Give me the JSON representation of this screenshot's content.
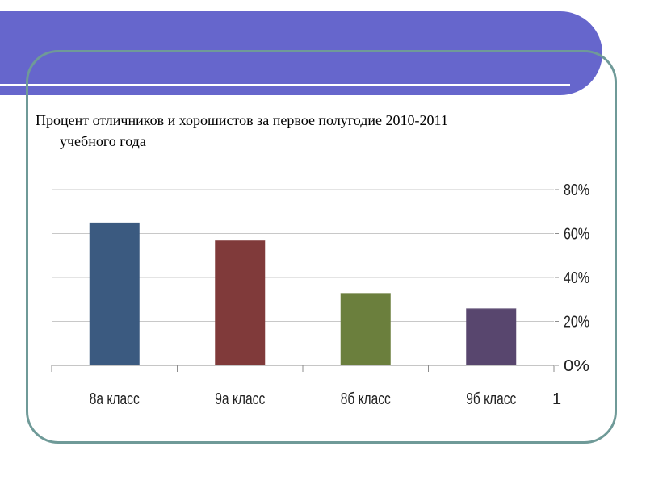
{
  "slide": {
    "header_color": "#6666cc",
    "frame_color": "#6f9a98",
    "title_line1": "Процент отличников и хорошистов за первое полугодие 2010-2011",
    "title_line2": "учебного года"
  },
  "chart_data": {
    "type": "bar",
    "title": "",
    "categories": [
      "8а класс",
      "9а класс",
      "8б класс",
      "9б класс"
    ],
    "values": [
      65,
      57,
      33,
      26
    ],
    "colors": [
      "#3b5a80",
      "#803a3a",
      "#6b7f3d",
      "#58466e"
    ],
    "ylim": [
      0,
      80
    ],
    "yticks": [
      0,
      20,
      40,
      60,
      80
    ],
    "ytick_labels": [
      "0%",
      "20%",
      "40%",
      "60%",
      "80%"
    ],
    "axis_side": "right",
    "series_label": "1",
    "grid": true
  }
}
